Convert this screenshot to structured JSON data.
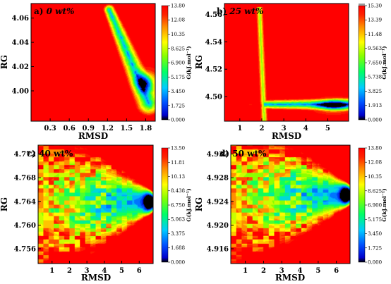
{
  "chart_data": [
    {
      "type": "heatmap",
      "panel_label": "a)",
      "title": "0 wt%",
      "xlabel": "RMSD",
      "ylabel": "RG",
      "xlim": [
        0.0,
        1.95
      ],
      "ylim": [
        3.975,
        4.072
      ],
      "xticks": [
        "0.3",
        "0.6",
        "0.9",
        "1.2",
        "1.5",
        "1.8"
      ],
      "yticks": [
        "4.00",
        "4.02",
        "4.04",
        "4.06"
      ],
      "colorbar_label": "G(kJ.mol⁻¹)",
      "colorbar_ticks": [
        "0.000",
        "1.725",
        "3.450",
        "5.175",
        "6.900",
        "8.625",
        "10.35",
        "12.08",
        "13.80"
      ],
      "zlim": [
        0,
        13.8
      ],
      "basin": {
        "type": "diagonal_band",
        "from": [
          1.22,
          4.066
        ],
        "to": [
          1.85,
          3.99
        ],
        "width": 0.22,
        "minimum": [
          1.82,
          4.005
        ]
      }
    },
    {
      "type": "heatmap",
      "panel_label": "b)",
      "title": "25 wt%",
      "xlabel": "RMSD",
      "ylabel": "RG",
      "xlim": [
        0.3,
        5.95
      ],
      "ylim": [
        4.482,
        4.568
      ],
      "xticks": [
        "1",
        "2",
        "3",
        "4",
        "5"
      ],
      "yticks": [
        "4.50",
        "4.52",
        "4.54",
        "4.56"
      ],
      "colorbar_label": "G(kJ.mol⁻¹)",
      "colorbar_ticks": [
        "0.000",
        "1.913",
        "3.825",
        "5.738",
        "7.650",
        "9.563",
        "11.48",
        "13.39",
        "15.30"
      ],
      "zlim": [
        0,
        15.3
      ],
      "basin": {
        "type": "l_shape",
        "vertical_x": 2.0,
        "horizontal_y": 4.493,
        "from_y": 4.566,
        "to_x": 5.9,
        "minimum": [
          5.3,
          4.494
        ]
      }
    },
    {
      "type": "heatmap",
      "panel_label": "c)",
      "title": "40 wt%",
      "xlabel": "RMSD",
      "ylabel": "RG",
      "xlim": [
        0.2,
        6.8
      ],
      "ylim": [
        4.7535,
        4.7735
      ],
      "xticks": [
        "1",
        "2",
        "3",
        "4",
        "5",
        "6"
      ],
      "yticks": [
        "4.756",
        "4.760",
        "4.764",
        "4.768",
        "4.772"
      ],
      "colorbar_label": "G(kJ.mol⁻¹)",
      "colorbar_ticks": [
        "0.000",
        "1.688",
        "3.375",
        "5.063",
        "6.750",
        "8.438",
        "10.13",
        "11.81",
        "13.50"
      ],
      "zlim": [
        0,
        13.5
      ],
      "basin": {
        "type": "fan",
        "apex": [
          6.7,
          4.764
        ],
        "minimum": [
          6.5,
          4.7635
        ]
      }
    },
    {
      "type": "heatmap",
      "panel_label": "d)",
      "title": "50 wt%",
      "xlabel": "RMSD",
      "ylabel": "RG",
      "xlim": [
        0.2,
        6.75
      ],
      "ylim": [
        4.9135,
        4.9335
      ],
      "xticks": [
        "1",
        "2",
        "3",
        "4",
        "5",
        "6"
      ],
      "yticks": [
        "4.916",
        "4.920",
        "4.924",
        "4.928",
        "4.932"
      ],
      "colorbar_label": "G(kJ.mol⁻¹)",
      "colorbar_ticks": [
        "0.000",
        "1.725",
        "3.450",
        "5.175",
        "6.900",
        "8.625",
        "10.35",
        "12.08",
        "13.80"
      ],
      "zlim": [
        0,
        13.8
      ],
      "basin": {
        "type": "fan",
        "apex": [
          6.7,
          4.925
        ],
        "minimum": [
          6.5,
          4.925
        ]
      }
    }
  ]
}
